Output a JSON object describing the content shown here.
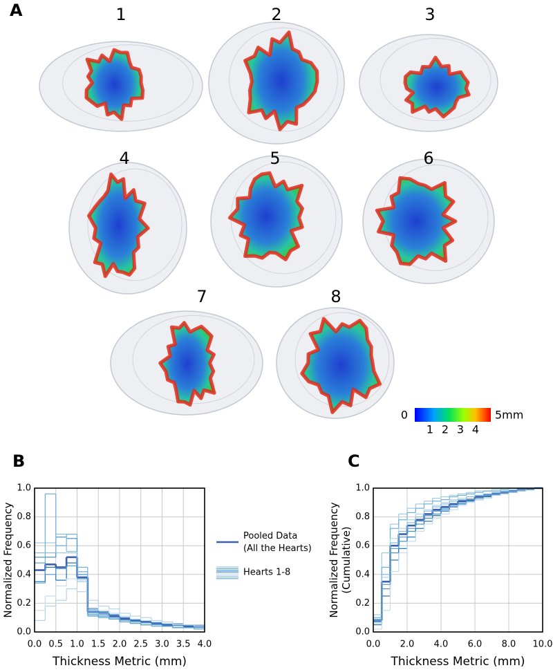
{
  "panel_a": {
    "label": "A",
    "hearts": [
      "1",
      "2",
      "3",
      "4",
      "5",
      "6",
      "7",
      "8"
    ],
    "colorbar": {
      "min": 0,
      "ticks": [
        1,
        2,
        3,
        4
      ],
      "max": {
        "value": 5,
        "label": "5mm"
      }
    }
  },
  "chart_data": [
    {
      "type": "histogram",
      "panel_label": "B",
      "xlabel": "Thickness Metric (mm)",
      "ylabel": "Normalized Frequency",
      "bins": [
        0,
        0.25,
        0.5,
        0.75,
        1.0,
        1.25,
        1.5,
        1.75,
        2.0,
        2.25,
        2.5,
        2.75,
        3.0,
        3.25,
        3.5,
        3.75,
        4.0
      ],
      "series": [
        {
          "name": "Pooled Data\n(All the Hearts)",
          "color": "#3d5fae",
          "values": [
            0.43,
            0.47,
            0.45,
            0.52,
            0.38,
            0.14,
            0.13,
            0.11,
            0.09,
            0.08,
            0.07,
            0.06,
            0.05,
            0.05,
            0.04,
            0.04
          ]
        },
        {
          "color": "#9ecae1",
          "values": [
            0.62,
            0.62,
            0.55,
            0.55,
            0.35,
            0.15,
            0.13,
            0.1,
            0.08,
            0.07,
            0.06,
            0.05,
            0.04,
            0.04,
            0.03,
            0.03
          ]
        },
        {
          "color": "#6baed6",
          "values": [
            0.34,
            0.96,
            0.6,
            0.68,
            0.45,
            0.14,
            0.12,
            0.1,
            0.08,
            0.07,
            0.05,
            0.05,
            0.04,
            0.03,
            0.03,
            0.02
          ]
        },
        {
          "color": "#4292c6",
          "values": [
            0.52,
            0.52,
            0.66,
            0.65,
            0.4,
            0.12,
            0.11,
            0.09,
            0.07,
            0.06,
            0.05,
            0.04,
            0.04,
            0.03,
            0.03,
            0.02
          ]
        },
        {
          "color": "#2171b5",
          "values": [
            0.35,
            0.45,
            0.36,
            0.48,
            0.42,
            0.16,
            0.14,
            0.12,
            0.1,
            0.08,
            0.07,
            0.06,
            0.05,
            0.05,
            0.04,
            0.04
          ]
        },
        {
          "color": "#c6dbef",
          "values": [
            0.15,
            0.25,
            0.32,
            0.37,
            0.36,
            0.17,
            0.15,
            0.13,
            0.11,
            0.09,
            0.08,
            0.07,
            0.06,
            0.05,
            0.05,
            0.04
          ]
        },
        {
          "color": "#b3d3ea",
          "values": [
            0.08,
            0.18,
            0.22,
            0.3,
            0.28,
            0.22,
            0.18,
            0.16,
            0.13,
            0.11,
            0.1,
            0.08,
            0.07,
            0.06,
            0.05,
            0.05
          ]
        },
        {
          "color": "#85bcdc",
          "values": [
            0.55,
            0.55,
            0.68,
            0.56,
            0.42,
            0.13,
            0.12,
            0.1,
            0.08,
            0.06,
            0.05,
            0.04,
            0.04,
            0.03,
            0.03,
            0.02
          ]
        },
        {
          "color": "#5a9fcf",
          "values": [
            0.48,
            0.4,
            0.44,
            0.46,
            0.37,
            0.11,
            0.1,
            0.09,
            0.07,
            0.06,
            0.05,
            0.05,
            0.04,
            0.03,
            0.03,
            0.03
          ]
        }
      ],
      "hearts_label": "Hearts 1-8",
      "xlim": [
        0,
        4
      ],
      "ylim": [
        0,
        1
      ],
      "xticks": [
        {
          "value": 0,
          "label": "0.0"
        },
        {
          "value": 0.5,
          "label": "0.5"
        },
        {
          "value": 1,
          "label": "1.0"
        },
        {
          "value": 1.5,
          "label": "1.5"
        },
        {
          "value": 2,
          "label": "2.0"
        },
        {
          "value": 2.5,
          "label": "2.5"
        },
        {
          "value": 3,
          "label": "3.0"
        },
        {
          "value": 3.5,
          "label": "3.5"
        },
        {
          "value": 4,
          "label": "4.0"
        }
      ],
      "yticks": [
        {
          "value": 0,
          "label": "0.0"
        },
        {
          "value": 0.2,
          "label": "0.2"
        },
        {
          "value": 0.4,
          "label": "0.4"
        },
        {
          "value": 0.6,
          "label": "0.6"
        },
        {
          "value": 0.8,
          "label": "0.8"
        },
        {
          "value": 1,
          "label": "1.0"
        }
      ],
      "grid": true
    },
    {
      "type": "histogram",
      "panel_label": "C",
      "xlabel": "Thickness Metric (mm)",
      "ylabel": "Normalized Frequency\n(Cumulative)",
      "bins": [
        0,
        0.5,
        1,
        1.5,
        2,
        2.5,
        3,
        3.5,
        4,
        4.5,
        5,
        5.5,
        6,
        6.5,
        7,
        7.5,
        8,
        8.5,
        9,
        9.5,
        10
      ],
      "series": [
        {
          "color": "#3d5fae",
          "values": [
            0.08,
            0.35,
            0.6,
            0.68,
            0.74,
            0.78,
            0.82,
            0.85,
            0.87,
            0.89,
            0.91,
            0.92,
            0.94,
            0.95,
            0.96,
            0.97,
            0.98,
            0.99,
            0.995,
            1.0
          ]
        },
        {
          "color": "#9ecae1",
          "values": [
            0.12,
            0.55,
            0.75,
            0.82,
            0.86,
            0.89,
            0.91,
            0.93,
            0.94,
            0.95,
            0.96,
            0.97,
            0.98,
            0.98,
            0.99,
            0.99,
            1.0,
            1.0,
            1.0,
            1.0
          ]
        },
        {
          "color": "#6baed6",
          "values": [
            0.1,
            0.45,
            0.72,
            0.78,
            0.83,
            0.86,
            0.89,
            0.91,
            0.92,
            0.94,
            0.95,
            0.96,
            0.97,
            0.98,
            0.98,
            0.99,
            0.99,
            1.0,
            1.0,
            1.0
          ]
        },
        {
          "color": "#4292c6",
          "values": [
            0.07,
            0.3,
            0.55,
            0.63,
            0.7,
            0.75,
            0.79,
            0.82,
            0.85,
            0.87,
            0.89,
            0.91,
            0.93,
            0.94,
            0.95,
            0.96,
            0.97,
            0.98,
            0.99,
            1.0
          ]
        },
        {
          "color": "#2171b5",
          "values": [
            0.05,
            0.25,
            0.5,
            0.58,
            0.66,
            0.72,
            0.77,
            0.81,
            0.84,
            0.87,
            0.89,
            0.91,
            0.92,
            0.94,
            0.95,
            0.96,
            0.97,
            0.98,
            0.99,
            1.0
          ]
        },
        {
          "color": "#c6dbef",
          "values": [
            0.02,
            0.15,
            0.42,
            0.55,
            0.63,
            0.7,
            0.75,
            0.79,
            0.82,
            0.85,
            0.88,
            0.9,
            0.92,
            0.93,
            0.95,
            0.96,
            0.97,
            0.98,
            0.99,
            1.0
          ]
        },
        {
          "color": "#b3d3ea",
          "values": [
            0.06,
            0.38,
            0.65,
            0.72,
            0.78,
            0.82,
            0.85,
            0.88,
            0.9,
            0.92,
            0.93,
            0.94,
            0.95,
            0.96,
            0.97,
            0.98,
            0.99,
            0.99,
            1.0,
            1.0
          ]
        },
        {
          "color": "#85bcdc",
          "values": [
            0.09,
            0.4,
            0.62,
            0.7,
            0.76,
            0.8,
            0.84,
            0.87,
            0.89,
            0.91,
            0.92,
            0.94,
            0.95,
            0.96,
            0.97,
            0.98,
            0.98,
            0.99,
            1.0,
            1.0
          ]
        },
        {
          "color": "#5a9fcf",
          "values": [
            0.08,
            0.33,
            0.58,
            0.66,
            0.72,
            0.77,
            0.81,
            0.84,
            0.86,
            0.88,
            0.9,
            0.92,
            0.93,
            0.95,
            0.96,
            0.97,
            0.98,
            0.99,
            0.99,
            1.0
          ]
        }
      ],
      "xlim": [
        0,
        10
      ],
      "ylim": [
        0,
        1
      ],
      "xticks": [
        {
          "value": 0,
          "label": "0.0"
        },
        {
          "value": 2,
          "label": "2.0"
        },
        {
          "value": 4,
          "label": "4.0"
        },
        {
          "value": 6,
          "label": "6.0"
        },
        {
          "value": 8,
          "label": "8.0"
        },
        {
          "value": 10,
          "label": "10.0"
        }
      ],
      "yticks": [
        {
          "value": 0,
          "label": "0.0"
        },
        {
          "value": 0.2,
          "label": "0.2"
        },
        {
          "value": 0.4,
          "label": "0.4"
        },
        {
          "value": 0.6,
          "label": "0.6"
        },
        {
          "value": 0.8,
          "label": "0.8"
        },
        {
          "value": 1,
          "label": "1.0"
        }
      ],
      "grid": true
    }
  ]
}
